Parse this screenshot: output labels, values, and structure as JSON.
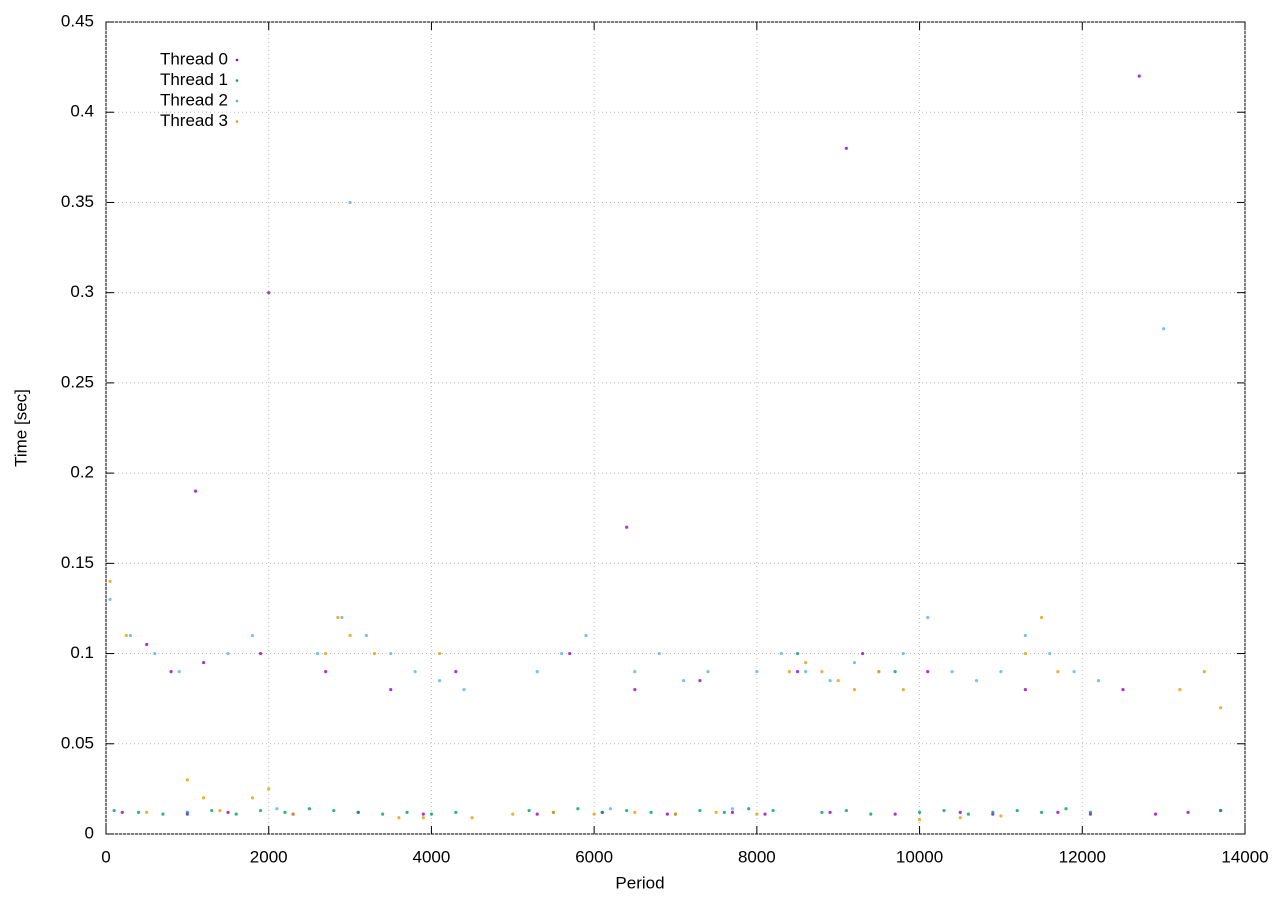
{
  "chart_data": {
    "type": "scatter",
    "x_label": "Period",
    "y_label": "Time [sec]",
    "xlim": [
      0,
      14000
    ],
    "ylim": [
      0,
      0.45
    ],
    "xticks": [
      0,
      2000,
      4000,
      6000,
      8000,
      10000,
      12000,
      14000
    ],
    "yticks": [
      0,
      0.05,
      0.1,
      0.15,
      0.2,
      0.25,
      0.3,
      0.35,
      0.4,
      0.45
    ],
    "grid": true,
    "legend": "top-left",
    "series": [
      {
        "name": "Thread 0",
        "color": "#9400d3",
        "x": [
          200,
          500,
          800,
          1000,
          1200,
          1500,
          1900,
          2300,
          2700,
          3100,
          3500,
          3900,
          4300,
          5300,
          5700,
          6100,
          6500,
          6900,
          7300,
          7700,
          8100,
          8500,
          8900,
          9300,
          9700,
          10100,
          10500,
          10900,
          11300,
          11700,
          12100,
          12500,
          12900,
          13300,
          13700,
          1100,
          2000,
          6400,
          9100,
          12700
        ],
        "values": [
          0.012,
          0.105,
          0.09,
          0.011,
          0.095,
          0.012,
          0.1,
          0.011,
          0.09,
          0.012,
          0.08,
          0.011,
          0.09,
          0.011,
          0.1,
          0.012,
          0.08,
          0.011,
          0.085,
          0.012,
          0.011,
          0.09,
          0.012,
          0.1,
          0.011,
          0.09,
          0.012,
          0.011,
          0.08,
          0.012,
          0.011,
          0.08,
          0.011,
          0.012,
          0.013,
          0.19,
          0.3,
          0.17,
          0.38,
          0.42
        ]
      },
      {
        "name": "Thread 1",
        "color": "#009e73",
        "x": [
          100,
          400,
          700,
          1000,
          1300,
          1600,
          1900,
          2200,
          2500,
          2800,
          3100,
          3400,
          3700,
          4000,
          4300,
          5200,
          5500,
          5800,
          6100,
          6400,
          6700,
          7000,
          7300,
          7600,
          7900,
          8200,
          8500,
          8800,
          9100,
          9400,
          9700,
          10000,
          10300,
          10600,
          10900,
          11200,
          11500,
          11800,
          12100,
          13700
        ],
        "values": [
          0.013,
          0.012,
          0.011,
          0.012,
          0.013,
          0.011,
          0.013,
          0.012,
          0.014,
          0.013,
          0.012,
          0.011,
          0.012,
          0.011,
          0.012,
          0.013,
          0.012,
          0.014,
          0.012,
          0.013,
          0.012,
          0.011,
          0.013,
          0.012,
          0.014,
          0.013,
          0.1,
          0.012,
          0.013,
          0.011,
          0.09,
          0.012,
          0.013,
          0.011,
          0.012,
          0.013,
          0.012,
          0.014,
          0.012,
          0.013
        ]
      },
      {
        "name": "Thread 2",
        "color": "#56b4e9",
        "x": [
          50,
          300,
          600,
          900,
          1500,
          1800,
          2100,
          2600,
          2900,
          3200,
          3500,
          3800,
          4100,
          4400,
          5300,
          5600,
          5900,
          6200,
          6500,
          6800,
          7100,
          7400,
          7700,
          8000,
          8300,
          8600,
          8900,
          9200,
          9500,
          9800,
          10100,
          10400,
          10700,
          11000,
          11300,
          11600,
          11900,
          12200,
          3000,
          13000
        ],
        "values": [
          0.13,
          0.11,
          0.1,
          0.09,
          0.1,
          0.11,
          0.014,
          0.1,
          0.12,
          0.11,
          0.1,
          0.09,
          0.085,
          0.08,
          0.09,
          0.1,
          0.11,
          0.014,
          0.09,
          0.1,
          0.085,
          0.09,
          0.014,
          0.09,
          0.1,
          0.09,
          0.085,
          0.095,
          0.09,
          0.1,
          0.12,
          0.09,
          0.085,
          0.09,
          0.11,
          0.1,
          0.09,
          0.085,
          0.35,
          0.28
        ]
      },
      {
        "name": "Thread 3",
        "color": "#e69f00",
        "x": [
          50,
          250,
          500,
          1000,
          1200,
          1400,
          1800,
          2000,
          2300,
          2700,
          2850,
          3000,
          3300,
          3600,
          3900,
          4100,
          4500,
          5000,
          5500,
          6000,
          6500,
          7000,
          7500,
          8000,
          8400,
          8600,
          8800,
          9000,
          9200,
          9500,
          9800,
          10000,
          10500,
          11000,
          11300,
          11500,
          11700,
          13200,
          13500,
          13700
        ],
        "values": [
          0.14,
          0.11,
          0.012,
          0.03,
          0.02,
          0.013,
          0.02,
          0.025,
          0.011,
          0.1,
          0.12,
          0.11,
          0.1,
          0.009,
          0.009,
          0.1,
          0.009,
          0.011,
          0.012,
          0.011,
          0.012,
          0.011,
          0.012,
          0.011,
          0.09,
          0.095,
          0.09,
          0.085,
          0.08,
          0.09,
          0.08,
          0.008,
          0.009,
          0.01,
          0.1,
          0.12,
          0.09,
          0.08,
          0.09,
          0.07
        ]
      }
    ]
  }
}
